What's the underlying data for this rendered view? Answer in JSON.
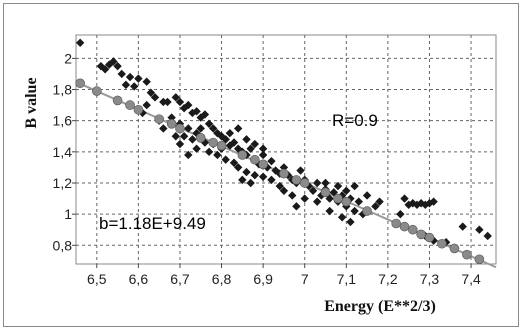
{
  "chart_data": {
    "type": "scatter",
    "xlabel": "Energy (E**2/3)",
    "ylabel": "B value",
    "xlim": [
      6.45,
      7.46
    ],
    "ylim": [
      0.68,
      2.15
    ],
    "x_ticks": [
      6.5,
      6.6,
      6.7,
      6.8,
      6.9,
      7.0,
      7.1,
      7.2,
      7.3,
      7.4
    ],
    "x_tick_labels": [
      "6,5",
      "6,6",
      "6,7",
      "6,8",
      "6,9",
      "7",
      "7,1",
      "7,2",
      "7,3",
      "7,4"
    ],
    "y_ticks": [
      0.8,
      1.0,
      1.2,
      1.4,
      1.6,
      1.8,
      2.0
    ],
    "y_tick_labels": [
      "0,8",
      "1",
      "1,2",
      "1,4",
      "1,6",
      "1,8",
      "2"
    ],
    "grid": true,
    "annotations": [
      "R=0.9",
      "b=1.18E+9.49"
    ],
    "series": [
      {
        "marker": "diamond",
        "color": "#1a1a1a",
        "points": [
          [
            6.46,
            2.1
          ],
          [
            6.51,
            1.95
          ],
          [
            6.52,
            1.93
          ],
          [
            6.54,
            1.98
          ],
          [
            6.55,
            1.95
          ],
          [
            6.53,
            1.96
          ],
          [
            6.56,
            1.9
          ],
          [
            6.58,
            1.88
          ],
          [
            6.6,
            1.87
          ],
          [
            6.62,
            1.85
          ],
          [
            6.57,
            1.83
          ],
          [
            6.59,
            1.82
          ],
          [
            6.63,
            1.78
          ],
          [
            6.64,
            1.75
          ],
          [
            6.66,
            1.72
          ],
          [
            6.67,
            1.72
          ],
          [
            6.69,
            1.75
          ],
          [
            6.7,
            1.72
          ],
          [
            6.71,
            1.68
          ],
          [
            6.72,
            1.7
          ],
          [
            6.73,
            1.65
          ],
          [
            6.74,
            1.66
          ],
          [
            6.75,
            1.62
          ],
          [
            6.76,
            1.64
          ],
          [
            6.68,
            1.62
          ],
          [
            6.7,
            1.58
          ],
          [
            6.72,
            1.55
          ],
          [
            6.74,
            1.52
          ],
          [
            6.71,
            1.5
          ],
          [
            6.73,
            1.48
          ],
          [
            6.75,
            1.55
          ],
          [
            6.77,
            1.58
          ],
          [
            6.78,
            1.55
          ],
          [
            6.79,
            1.52
          ],
          [
            6.8,
            1.5
          ],
          [
            6.81,
            1.48
          ],
          [
            6.78,
            1.45
          ],
          [
            6.8,
            1.42
          ],
          [
            6.82,
            1.44
          ],
          [
            6.83,
            1.46
          ],
          [
            6.84,
            1.42
          ],
          [
            6.85,
            1.4
          ],
          [
            6.77,
            1.4
          ],
          [
            6.79,
            1.38
          ],
          [
            6.81,
            1.35
          ],
          [
            6.83,
            1.33
          ],
          [
            6.86,
            1.38
          ],
          [
            6.87,
            1.42
          ],
          [
            6.88,
            1.35
          ],
          [
            6.89,
            1.32
          ],
          [
            6.9,
            1.38
          ],
          [
            6.91,
            1.3
          ],
          [
            6.92,
            1.34
          ],
          [
            6.93,
            1.28
          ],
          [
            6.84,
            1.3
          ],
          [
            6.86,
            1.27
          ],
          [
            6.88,
            1.25
          ],
          [
            6.85,
            1.22
          ],
          [
            6.87,
            1.2
          ],
          [
            6.9,
            1.24
          ],
          [
            6.92,
            1.22
          ],
          [
            6.94,
            1.26
          ],
          [
            6.95,
            1.3
          ],
          [
            6.96,
            1.25
          ],
          [
            6.97,
            1.22
          ],
          [
            6.98,
            1.2
          ],
          [
            6.99,
            1.28
          ],
          [
            7.0,
            1.22
          ],
          [
            7.01,
            1.18
          ],
          [
            7.02,
            1.15
          ],
          [
            7.03,
            1.2
          ],
          [
            7.04,
            1.12
          ],
          [
            7.05,
            1.16
          ],
          [
            7.06,
            1.1
          ],
          [
            7.07,
            1.14
          ],
          [
            7.08,
            1.08
          ],
          [
            7.09,
            1.12
          ],
          [
            7.1,
            1.05
          ],
          [
            7.11,
            1.1
          ],
          [
            7.12,
            1.02
          ],
          [
            7.13,
            1.08
          ],
          [
            7.14,
            1.0
          ],
          [
            7.1,
            1.15
          ],
          [
            7.12,
            1.18
          ],
          [
            7.05,
            1.2
          ],
          [
            7.08,
            1.18
          ],
          [
            7.0,
            1.1
          ],
          [
            7.03,
            1.08
          ],
          [
            6.98,
            1.05
          ],
          [
            7.06,
            1.02
          ],
          [
            7.09,
            0.98
          ],
          [
            7.11,
            0.95
          ],
          [
            6.95,
            1.15
          ],
          [
            6.97,
            1.12
          ],
          [
            6.94,
            1.18
          ],
          [
            6.82,
            1.52
          ],
          [
            6.84,
            1.55
          ],
          [
            6.86,
            1.48
          ],
          [
            6.88,
            1.45
          ],
          [
            6.9,
            1.42
          ],
          [
            6.76,
            1.46
          ],
          [
            6.74,
            1.42
          ],
          [
            6.72,
            1.38
          ],
          [
            6.7,
            1.45
          ],
          [
            6.69,
            1.5
          ],
          [
            6.66,
            1.55
          ],
          [
            6.65,
            1.6
          ],
          [
            6.61,
            1.65
          ],
          [
            6.62,
            1.7
          ],
          [
            7.24,
            1.1
          ],
          [
            7.25,
            1.06
          ],
          [
            7.26,
            1.07
          ],
          [
            7.27,
            1.06
          ],
          [
            7.28,
            1.07
          ],
          [
            7.29,
            1.06
          ],
          [
            7.3,
            1.07
          ],
          [
            7.31,
            1.08
          ],
          [
            7.23,
            1.0
          ],
          [
            7.29,
            0.86
          ],
          [
            7.31,
            0.83
          ],
          [
            7.34,
            0.82
          ],
          [
            7.38,
            0.92
          ],
          [
            7.42,
            0.9
          ],
          [
            7.44,
            0.86
          ],
          [
            7.15,
            1.12
          ],
          [
            7.18,
            1.08
          ],
          [
            7.17,
            1.05
          ]
        ]
      },
      {
        "marker": "circle",
        "color": "#8a8a8a",
        "points": [
          [
            6.46,
            1.84
          ],
          [
            6.5,
            1.79
          ],
          [
            6.55,
            1.73
          ],
          [
            6.6,
            1.67
          ],
          [
            6.65,
            1.61
          ],
          [
            6.7,
            1.55
          ],
          [
            6.75,
            1.49
          ],
          [
            6.8,
            1.44
          ],
          [
            6.85,
            1.38
          ],
          [
            6.9,
            1.32
          ],
          [
            6.95,
            1.26
          ],
          [
            7.0,
            1.2
          ],
          [
            7.05,
            1.14
          ],
          [
            7.1,
            1.08
          ],
          [
            7.15,
            1.02
          ],
          [
            7.22,
            0.94
          ],
          [
            7.24,
            0.92
          ],
          [
            7.26,
            0.9
          ],
          [
            7.28,
            0.87
          ],
          [
            7.3,
            0.85
          ],
          [
            7.33,
            0.81
          ],
          [
            7.36,
            0.78
          ],
          [
            7.39,
            0.74
          ],
          [
            7.42,
            0.71
          ],
          [
            6.58,
            1.7
          ],
          [
            6.68,
            1.58
          ],
          [
            6.78,
            1.46
          ],
          [
            6.88,
            1.35
          ],
          [
            6.98,
            1.22
          ],
          [
            7.08,
            1.1
          ]
        ]
      }
    ]
  }
}
